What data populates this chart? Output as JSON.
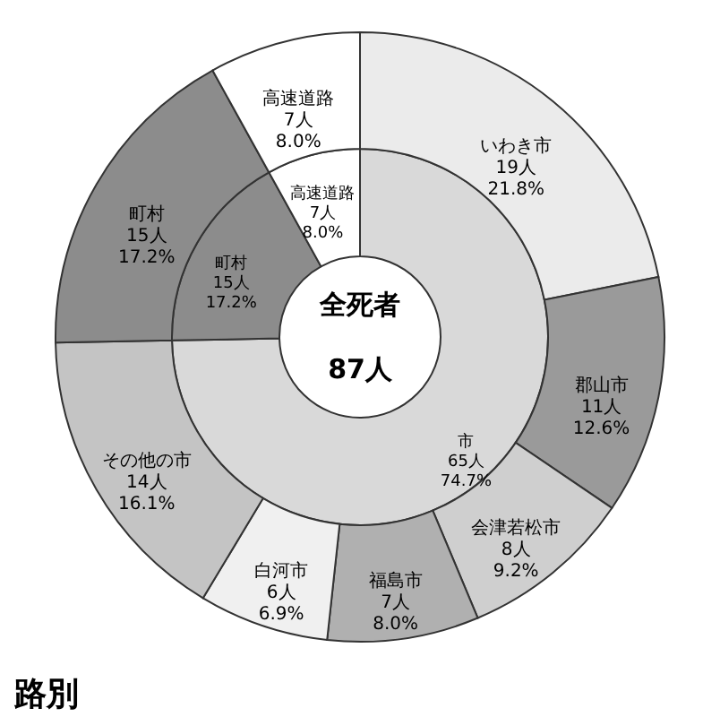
{
  "chart_data": [
    {
      "type": "donut",
      "categories": [
        "市",
        "町村",
        "高速道路"
      ],
      "values": [
        65,
        15,
        7
      ],
      "colors": [
        "#d9d9d9",
        "#8c8c8c",
        "#ffffff"
      ],
      "value_labels": [
        "65人\n74.7%",
        "15人\n17.2%",
        "7人\n8.0%"
      ],
      "annotations": [
        "全死者",
        "87人"
      ]
    },
    {
      "type": "donut",
      "categories": [
        "いわき市",
        "郡山市",
        "会津若松市",
        "福島市",
        "白河市",
        "その他の市",
        "町村",
        "高速道路"
      ],
      "values": [
        19,
        11,
        8,
        7,
        6,
        14,
        15,
        7
      ],
      "colors": [
        "#ebebeb",
        "#9a9a9a",
        "#cfcfcf",
        "#b0b0b0",
        "#f0f0f0",
        "#c4c4c4",
        "#8c8c8c",
        "#ffffff"
      ],
      "value_labels": [
        "19人\n21.8%",
        "11人\n12.6%",
        "8人\n9.2%",
        "7人\n8.0%",
        "6人\n6.9%",
        "14人\n16.1%",
        "15人\n17.2%",
        "7人\n8.0%"
      ],
      "annotations": [
        "路別"
      ]
    }
  ]
}
